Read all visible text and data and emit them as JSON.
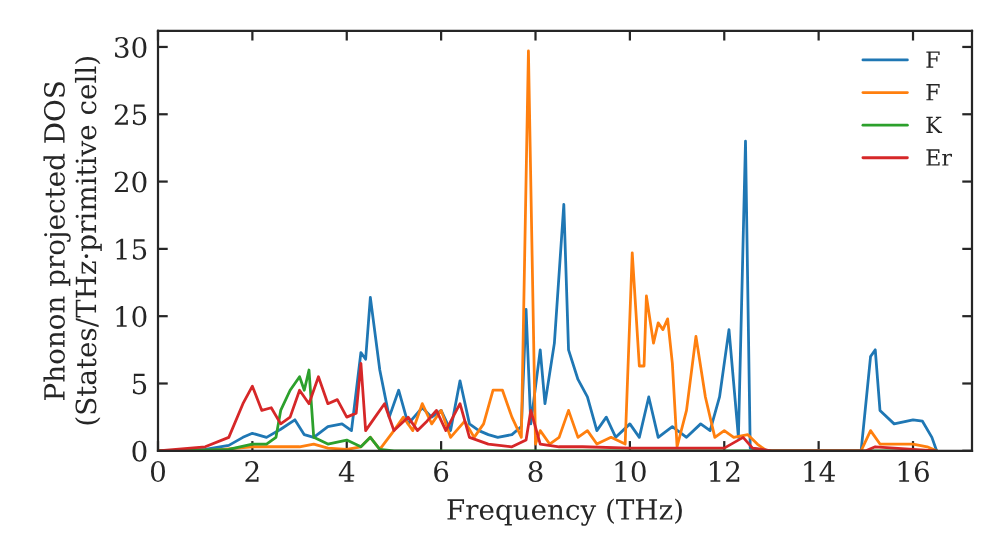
{
  "chart_data": {
    "type": "line",
    "xlabel": "Frequency (THz)",
    "ylabel": "Phonon projected DOS\n(States/THz·primitive cell)",
    "xlim": [
      0,
      17.25
    ],
    "ylim": [
      0,
      31.2
    ],
    "xticks": [
      0,
      2,
      4,
      6,
      8,
      10,
      12,
      14,
      16
    ],
    "yticks": [
      0,
      5,
      10,
      15,
      20,
      25,
      30
    ],
    "grid": false,
    "legend": "top right",
    "marker": "none",
    "line_style": "solid",
    "series": [
      {
        "name": "F",
        "color": "#1f77b4",
        "x": [
          0,
          1,
          1.5,
          1.8,
          2.0,
          2.3,
          2.6,
          2.9,
          3.1,
          3.3,
          3.6,
          3.9,
          4.1,
          4.3,
          4.4,
          4.5,
          4.7,
          4.9,
          5.1,
          5.3,
          5.6,
          5.8,
          6.0,
          6.2,
          6.4,
          6.6,
          6.8,
          7.0,
          7.2,
          7.5,
          7.7,
          7.8,
          7.9,
          8.1,
          8.2,
          8.4,
          8.6,
          8.7,
          8.9,
          9.1,
          9.3,
          9.5,
          9.7,
          10.0,
          10.2,
          10.4,
          10.6,
          10.9,
          11.2,
          11.5,
          11.7,
          11.9,
          12.1,
          12.3,
          12.45,
          12.55,
          13,
          14.9,
          15.1,
          15.2,
          15.3,
          15.6,
          16,
          16.2,
          16.4,
          16.5
        ],
        "values": [
          0,
          0.1,
          0.4,
          1.0,
          1.3,
          1.0,
          1.6,
          2.3,
          1.2,
          1.0,
          1.8,
          2.0,
          1.5,
          7.3,
          6.8,
          11.4,
          6.0,
          2.5,
          4.5,
          2.0,
          3.2,
          2.5,
          3.0,
          1.5,
          5.2,
          2.0,
          1.5,
          1.2,
          1.0,
          1.2,
          1.8,
          10.5,
          2.0,
          7.5,
          3.5,
          8.0,
          18.3,
          7.5,
          5.3,
          4.0,
          1.5,
          2.5,
          1.0,
          2.0,
          1.0,
          4.0,
          1.0,
          1.8,
          1.0,
          2.0,
          1.5,
          4.0,
          9.0,
          1.0,
          23.0,
          0.2,
          0,
          0,
          7.0,
          7.5,
          3.0,
          2.0,
          2.3,
          2.2,
          1.0,
          0
        ]
      },
      {
        "name": "F",
        "color": "#ff7f0e",
        "x": [
          0,
          1,
          2,
          2.5,
          3,
          3.3,
          3.6,
          4,
          4.3,
          4.5,
          4.7,
          5,
          5.2,
          5.4,
          5.6,
          5.8,
          6.0,
          6.2,
          6.5,
          6.7,
          6.9,
          7.1,
          7.3,
          7.5,
          7.7,
          7.85,
          8.0,
          8.1,
          8.3,
          8.5,
          8.7,
          8.9,
          9.1,
          9.3,
          9.6,
          9.9,
          10.05,
          10.2,
          10.3,
          10.35,
          10.5,
          10.6,
          10.7,
          10.8,
          10.9,
          11.0,
          11.2,
          11.4,
          11.6,
          11.8,
          12.0,
          12.2,
          12.5,
          12.7,
          12.9,
          14.9,
          15.1,
          15.3,
          16.0,
          16.3,
          16.5
        ],
        "values": [
          0,
          0,
          0.3,
          0.3,
          0.3,
          0.5,
          0.2,
          0.1,
          0.3,
          1.0,
          0.1,
          1.5,
          2.5,
          1.5,
          3.5,
          2.0,
          3.0,
          1.0,
          2.2,
          1.0,
          2.0,
          4.5,
          4.5,
          2.5,
          1.0,
          29.7,
          0.5,
          1.5,
          0.5,
          1.0,
          3.0,
          1.0,
          1.5,
          0.5,
          1.0,
          0.5,
          14.7,
          6.3,
          6.3,
          11.5,
          8.0,
          9.5,
          9.0,
          9.8,
          6.5,
          0.3,
          3.0,
          8.5,
          4.0,
          1.0,
          1.5,
          1.0,
          1.2,
          0.5,
          0,
          0,
          1.5,
          0.5,
          0.5,
          0.3,
          0
        ]
      },
      {
        "name": "K",
        "color": "#2ca02c",
        "x": [
          0,
          1.5,
          2,
          2.3,
          2.5,
          2.6,
          2.8,
          3.0,
          3.1,
          3.2,
          3.3,
          3.6,
          4.0,
          4.3,
          4.5,
          4.7,
          5,
          16.5
        ],
        "values": [
          0,
          0.1,
          0.5,
          0.5,
          1.0,
          3.0,
          4.5,
          5.5,
          4.5,
          6.0,
          1.0,
          0.5,
          0.8,
          0.3,
          1.0,
          0.1,
          0,
          0
        ]
      },
      {
        "name": "Er",
        "color": "#d62728",
        "x": [
          0,
          1,
          1.5,
          1.8,
          2.0,
          2.2,
          2.4,
          2.6,
          2.8,
          3.0,
          3.2,
          3.4,
          3.6,
          3.8,
          4.0,
          4.2,
          4.3,
          4.4,
          4.6,
          4.8,
          5.0,
          5.3,
          5.5,
          5.7,
          5.9,
          6.1,
          6.4,
          6.6,
          7.0,
          7.5,
          7.8,
          7.9,
          8.1,
          8.5,
          9.0,
          10,
          11,
          12,
          12.4,
          12.6,
          13,
          15,
          15.2,
          16,
          16.5
        ],
        "values": [
          0,
          0.3,
          1.0,
          3.5,
          4.8,
          3.0,
          3.2,
          2.0,
          2.5,
          4.5,
          3.5,
          5.5,
          3.5,
          3.8,
          2.5,
          2.8,
          6.5,
          1.5,
          2.5,
          3.5,
          1.5,
          2.5,
          1.5,
          2.2,
          3.0,
          1.5,
          3.5,
          1.0,
          0.5,
          0.3,
          0.8,
          3.0,
          0.5,
          0.3,
          0.3,
          0.2,
          0.2,
          0.2,
          1.0,
          0.2,
          0,
          0,
          0.3,
          0.1,
          0
        ]
      }
    ]
  }
}
